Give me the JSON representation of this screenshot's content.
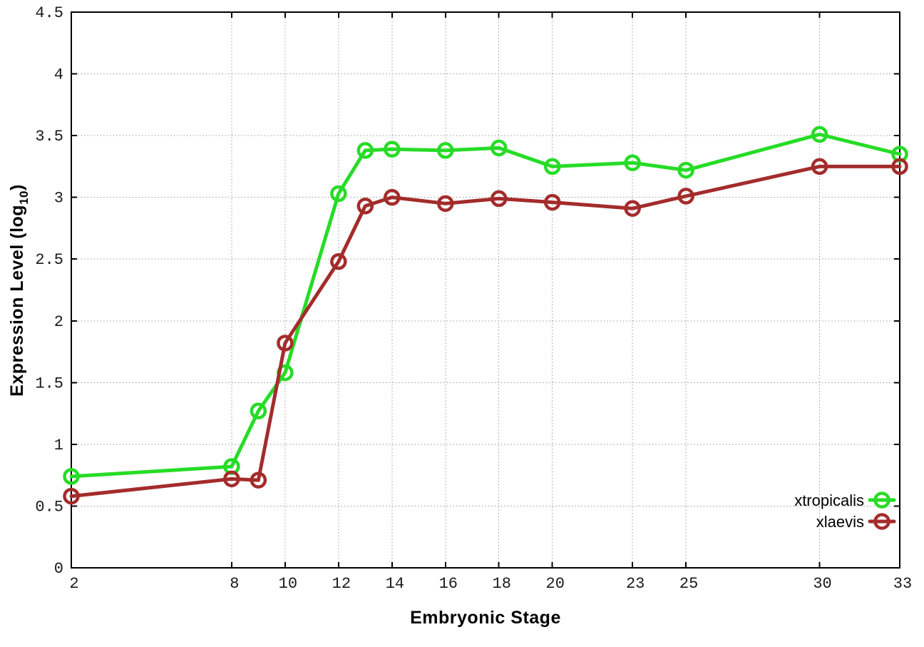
{
  "figure": {
    "xlabel": "Embryonic Stage",
    "ylabel_prefix": "Expression Level (log",
    "ylabel_sub": "10",
    "ylabel_suffix": ")",
    "background_color": "#ffffff",
    "border_color": "#000000",
    "grid_color": "#9a9a9a"
  },
  "chart_data": {
    "type": "line",
    "x": [
      2,
      8,
      9,
      10,
      12,
      13,
      14,
      16,
      18,
      20,
      23,
      25,
      30,
      33
    ],
    "series": [
      {
        "name": "xtropicalis",
        "color": "#26dc26",
        "marker": "open-circle",
        "values": [
          0.74,
          0.82,
          1.27,
          1.58,
          3.03,
          3.38,
          3.39,
          3.38,
          3.4,
          3.25,
          3.28,
          3.22,
          3.51,
          3.35
        ]
      },
      {
        "name": "xlaevis",
        "color": "#a42c2c",
        "marker": "open-circle",
        "values": [
          0.58,
          0.72,
          0.71,
          1.82,
          2.48,
          2.93,
          3.0,
          2.95,
          2.99,
          2.96,
          2.91,
          3.01,
          3.25,
          3.25
        ]
      }
    ],
    "title": "",
    "xlabel": "Embryonic Stage",
    "ylabel": "Expression Level (log10)",
    "xlim": [
      2,
      33
    ],
    "ylim": [
      0,
      4.5
    ],
    "x_ticks": [
      2,
      8,
      10,
      12,
      14,
      16,
      18,
      20,
      23,
      25,
      30,
      33
    ],
    "x_tick_labels": [
      "2",
      "8",
      "10",
      "12",
      "14",
      "16",
      "18",
      "20",
      "23",
      "25",
      "30",
      "33"
    ],
    "y_ticks": [
      0,
      0.5,
      1,
      1.5,
      2,
      2.5,
      3,
      3.5,
      4,
      4.5
    ],
    "y_tick_labels": [
      "0",
      "0.5",
      "1",
      "1.5",
      "2",
      "2.5",
      "3",
      "3.5",
      "4",
      "4.5"
    ],
    "grid": true,
    "grid_style": "dotted",
    "legend_position": "bottom-right",
    "legend_entries": [
      "xtropicalis",
      "xlaevis"
    ]
  }
}
